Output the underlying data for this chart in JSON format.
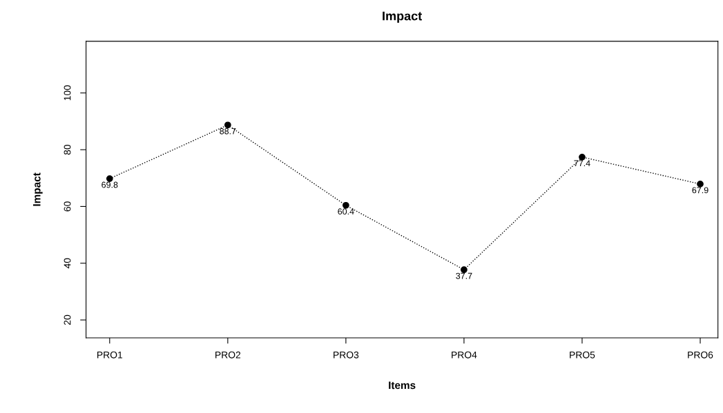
{
  "chart_data": {
    "type": "line",
    "title": "Impact",
    "xlabel": "Items",
    "ylabel": "Impact",
    "categories": [
      "PRO1",
      "PRO2",
      "PRO3",
      "PRO4",
      "PRO5",
      "PRO6"
    ],
    "series": [
      {
        "color": "#000000",
        "values": [
          69.8,
          88.7,
          60.4,
          37.7,
          77.4,
          67.9
        ]
      }
    ],
    "ylim": [
      13.7,
      118.2
    ],
    "yticks": [
      20,
      40,
      60,
      80,
      100
    ],
    "data_labels": true,
    "marker": "circle",
    "line_style": "dotted",
    "grid": false,
    "legend": false
  }
}
